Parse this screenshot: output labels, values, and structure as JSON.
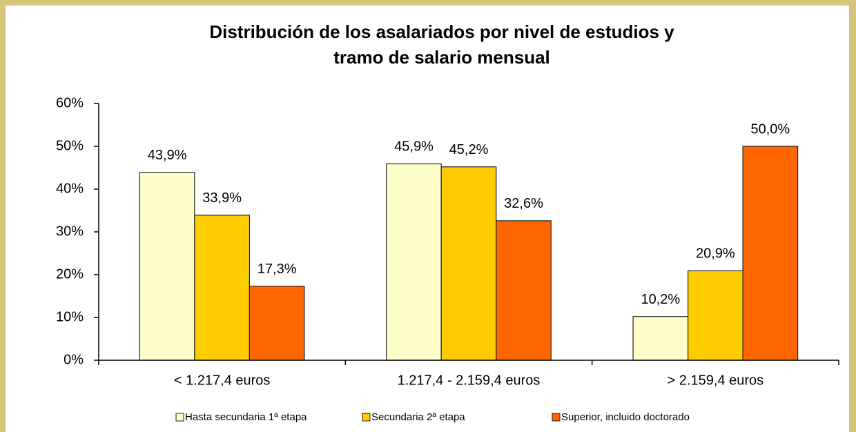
{
  "chart_data": {
    "type": "bar",
    "title": [
      "Distribución de los asalariados por nivel de estudios y",
      "tramo de salario mensual"
    ],
    "categories": [
      "< 1.217,4 euros",
      "1.217,4 - 2.159,4 euros",
      "> 2.159,4 euros"
    ],
    "series": [
      {
        "name": "Hasta secundaria 1ª etapa",
        "color": "#ffffcc",
        "values": [
          43.9,
          45.9,
          10.2
        ],
        "value_labels": [
          "43,9%",
          "45,9%",
          "10,2%"
        ]
      },
      {
        "name": "Secundaria 2ª etapa",
        "color": "#ffcc00",
        "values": [
          33.9,
          45.2,
          20.9
        ],
        "value_labels": [
          "33,9%",
          "45,2%",
          "20,9%"
        ]
      },
      {
        "name": "Superior, incluido doctorado",
        "color": "#ff6600",
        "values": [
          17.3,
          32.6,
          50.0
        ],
        "value_labels": [
          "17,3%",
          "32,6%",
          "50,0%"
        ]
      }
    ],
    "ylim": [
      0,
      60
    ],
    "yticks": [
      {
        "value": 0,
        "label": "0%"
      },
      {
        "value": 10,
        "label": "10%"
      },
      {
        "value": 20,
        "label": "20%"
      },
      {
        "value": 30,
        "label": "30%"
      },
      {
        "value": 40,
        "label": "40%"
      },
      {
        "value": 50,
        "label": "50%"
      },
      {
        "value": 60,
        "label": "60%"
      }
    ],
    "legend": "bottom"
  }
}
